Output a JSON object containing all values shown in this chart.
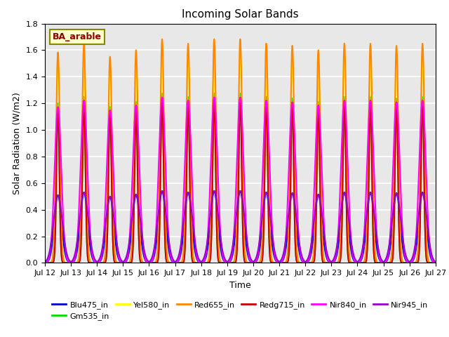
{
  "title": "Incoming Solar Bands",
  "xlabel": "Time",
  "ylabel": "Solar Radiation (W/m2)",
  "annotation": "BA_arable",
  "ylim": [
    0.0,
    1.8
  ],
  "num_days": 15,
  "x_tick_labels": [
    "Jul 12",
    "Jul 13",
    "Jul 14",
    "Jul 15",
    "Jul 16",
    "Jul 17",
    "Jul 18",
    "Jul 19",
    "Jul 20",
    "Jul 21",
    "Jul 22",
    "Jul 23",
    "Jul 24",
    "Jul 25",
    "Jul 26",
    "Jul 27"
  ],
  "band_configs": {
    "Blu475_in": {
      "color": "#0000cc",
      "peak": 0.53,
      "sigma": 0.14,
      "lw": 1.5,
      "order": 1
    },
    "Gm535_in": {
      "color": "#00dd00",
      "peak": 1.25,
      "sigma": 0.055,
      "lw": 1.5,
      "order": 2
    },
    "Yel580_in": {
      "color": "#ffff00",
      "peak": 1.58,
      "sigma": 0.065,
      "lw": 1.5,
      "order": 3
    },
    "Red655_in": {
      "color": "#ff8800",
      "peak": 1.65,
      "sigma": 0.075,
      "lw": 1.5,
      "order": 4
    },
    "Redg715_in": {
      "color": "#cc0000",
      "peak": 1.22,
      "sigma": 0.055,
      "lw": 1.5,
      "order": 5
    },
    "Nir840_in": {
      "color": "#ff00ff",
      "peak": 1.22,
      "sigma": 0.13,
      "lw": 1.5,
      "order": 6
    },
    "Nir945_in": {
      "color": "#9900cc",
      "peak": 0.53,
      "sigma": 0.17,
      "lw": 1.5,
      "order": 7
    }
  },
  "day_peak_factors": [
    0.96,
    1.0,
    0.94,
    0.97,
    1.02,
    1.0,
    1.02,
    1.02,
    1.0,
    0.99,
    0.97,
    1.0,
    1.0,
    0.99,
    1.0
  ],
  "background_color": "#e8e8e8",
  "grid_color": "#ffffff",
  "points_per_day": 500,
  "figsize": [
    6.4,
    4.8
  ],
  "dpi": 100
}
